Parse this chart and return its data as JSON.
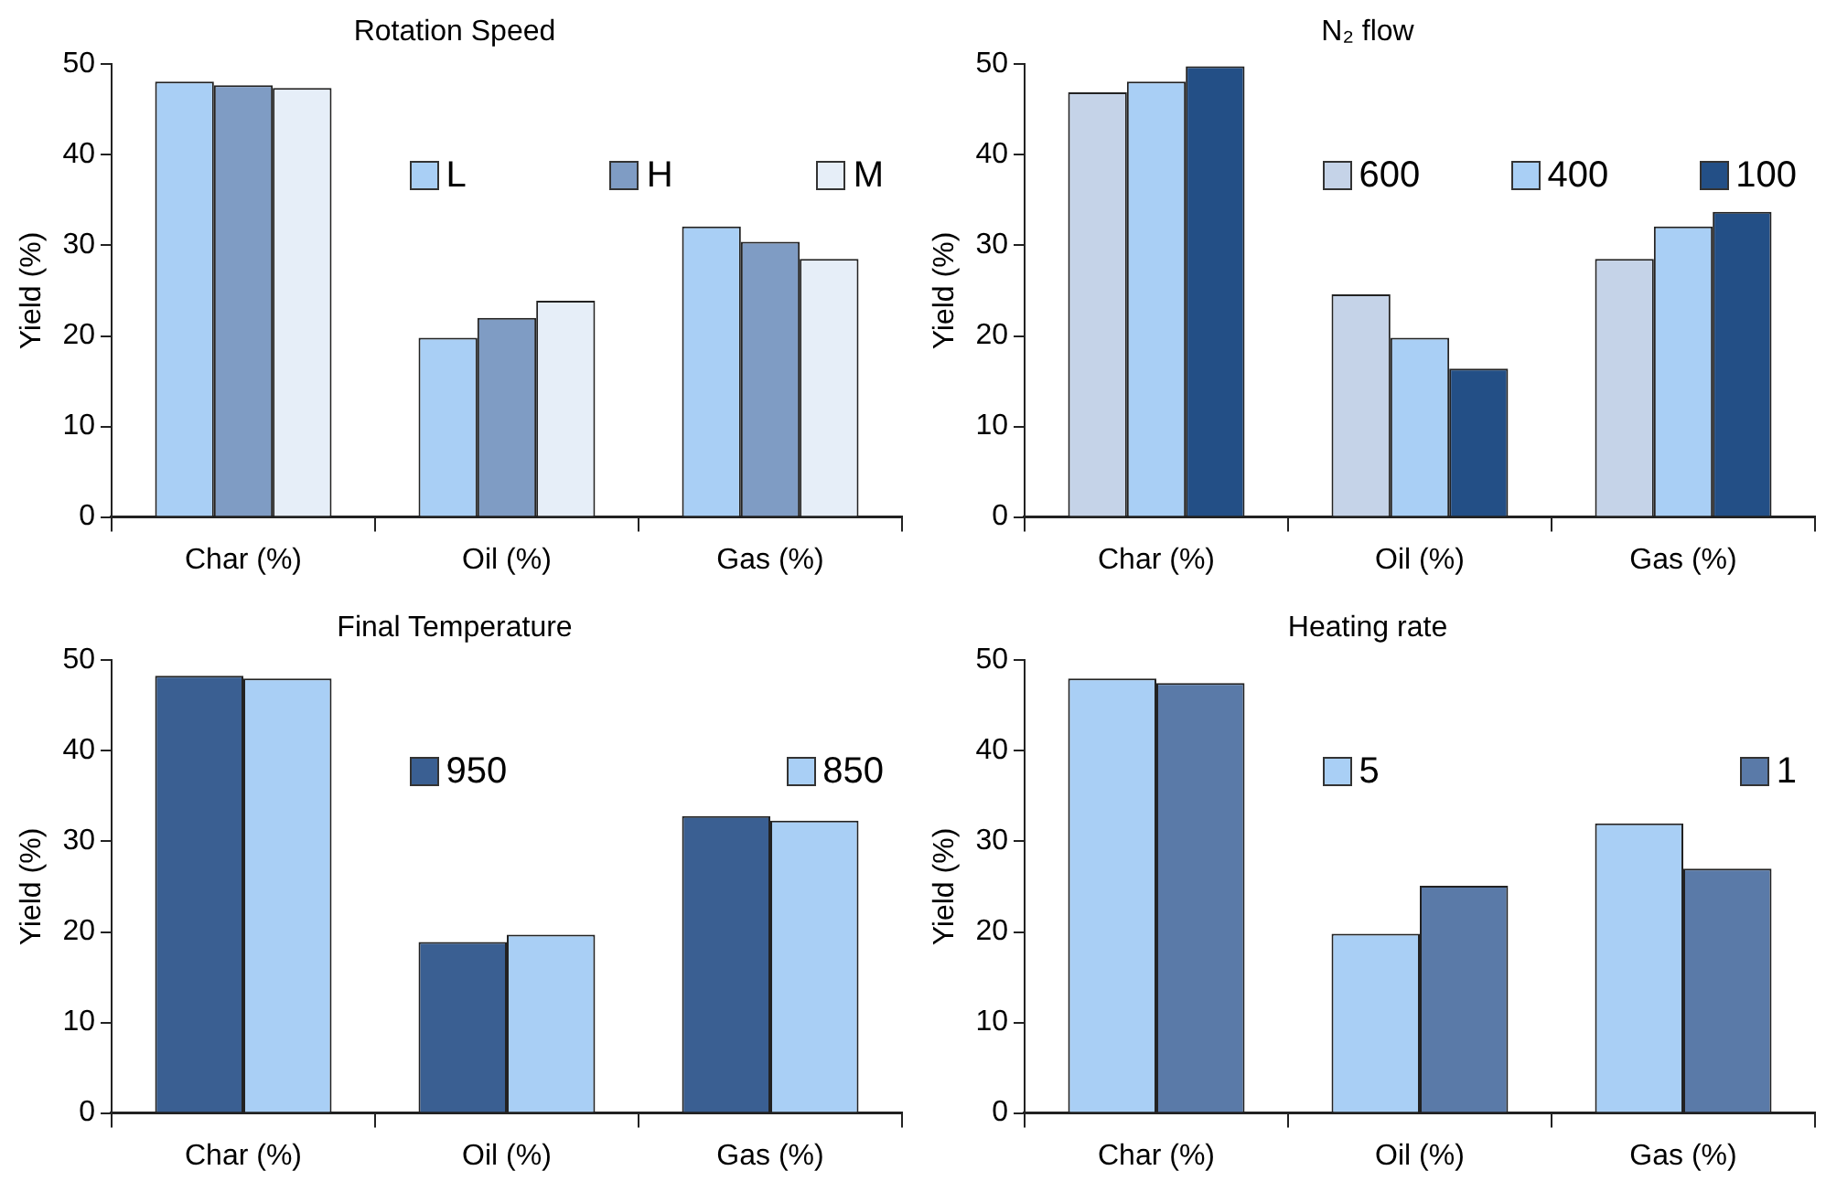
{
  "chart_data": [
    {
      "type": "bar",
      "title": "Rotation Speed",
      "ylabel": "Yield (%)",
      "categories": [
        "Char (%)",
        "Oil (%)",
        "Gas (%)"
      ],
      "ylim": [
        0,
        50
      ],
      "yticks": [
        0,
        10,
        20,
        30,
        40,
        50
      ],
      "grid": false,
      "legend": "top right",
      "series": [
        {
          "name": "L",
          "color": "#a9cff5",
          "values": [
            48.1,
            19.8,
            32.1
          ]
        },
        {
          "name": "H",
          "color": "#7f9cc4",
          "values": [
            47.7,
            22.0,
            30.4
          ]
        },
        {
          "name": "M",
          "color": "#e6eef8",
          "values": [
            47.4,
            23.9,
            28.5
          ]
        }
      ]
    },
    {
      "type": "bar",
      "title": "N₂ flow",
      "ylabel": "Yield (%)",
      "categories": [
        "Char (%)",
        "Oil (%)",
        "Gas (%)"
      ],
      "ylim": [
        0,
        50
      ],
      "yticks": [
        0,
        10,
        20,
        30,
        40,
        50
      ],
      "grid": false,
      "legend": "top right",
      "series": [
        {
          "name": "600",
          "color": "#c5d3e8",
          "values": [
            46.9,
            24.6,
            28.5
          ]
        },
        {
          "name": "400",
          "color": "#a9cff5",
          "values": [
            48.1,
            19.8,
            32.1
          ]
        },
        {
          "name": "100",
          "color": "#234f86",
          "values": [
            49.8,
            16.4,
            33.7
          ]
        }
      ]
    },
    {
      "type": "bar",
      "title": "Final Temperature",
      "ylabel": "Yield (%)",
      "categories": [
        "Char (%)",
        "Oil (%)",
        "Gas (%)"
      ],
      "ylim": [
        0,
        50
      ],
      "yticks": [
        0,
        10,
        20,
        30,
        40,
        50
      ],
      "grid": false,
      "legend": "top right",
      "series": [
        {
          "name": "950",
          "color": "#3a5f92",
          "values": [
            48.3,
            18.9,
            32.8
          ]
        },
        {
          "name": "850",
          "color": "#a9cff5",
          "values": [
            48.0,
            19.7,
            32.3
          ]
        }
      ]
    },
    {
      "type": "bar",
      "title": "Heating rate",
      "ylabel": "Yield (%)",
      "categories": [
        "Char (%)",
        "Oil (%)",
        "Gas (%)"
      ],
      "ylim": [
        0,
        50
      ],
      "yticks": [
        0,
        10,
        20,
        30,
        40,
        50
      ],
      "grid": false,
      "legend": "top right",
      "series": [
        {
          "name": "5",
          "color": "#a9cff5",
          "values": [
            48.0,
            19.8,
            32.0
          ]
        },
        {
          "name": "1",
          "color": "#5a7aa8",
          "values": [
            47.5,
            25.1,
            27.0
          ]
        }
      ]
    }
  ]
}
